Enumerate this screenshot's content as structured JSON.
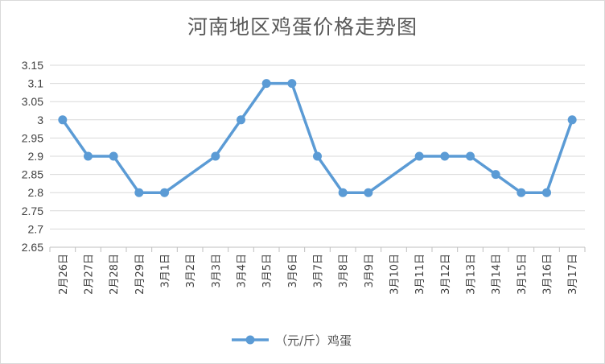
{
  "chart_data": {
    "type": "line",
    "title": "河南地区鸡蛋价格走势图",
    "xlabel": "",
    "ylabel": "",
    "categories": [
      "2月26日",
      "2月27日",
      "2月28日",
      "2月29日",
      "3月1日",
      "3月2日",
      "3月3日",
      "3月4日",
      "3月5日",
      "3月6日",
      "3月7日",
      "3月8日",
      "3月9日",
      "3月10日",
      "3月11日",
      "3月12日",
      "3月13日",
      "3月14日",
      "3月15日",
      "3月16日",
      "3月17日"
    ],
    "series": [
      {
        "name": "（元/斤）鸡蛋",
        "color": "#5b9bd5",
        "values": [
          3.0,
          2.9,
          2.9,
          2.8,
          2.8,
          null,
          2.9,
          3.0,
          3.1,
          3.1,
          2.9,
          2.8,
          2.8,
          null,
          2.9,
          2.9,
          2.9,
          2.85,
          2.8,
          2.8,
          3.0
        ]
      }
    ],
    "ylim": [
      2.65,
      3.15
    ],
    "yticks": [
      "2.65",
      "2.7",
      "2.75",
      "2.8",
      "2.85",
      "2.9",
      "2.95",
      "3",
      "3.05",
      "3.1",
      "3.15"
    ],
    "grid": true,
    "legend": "bottom"
  }
}
